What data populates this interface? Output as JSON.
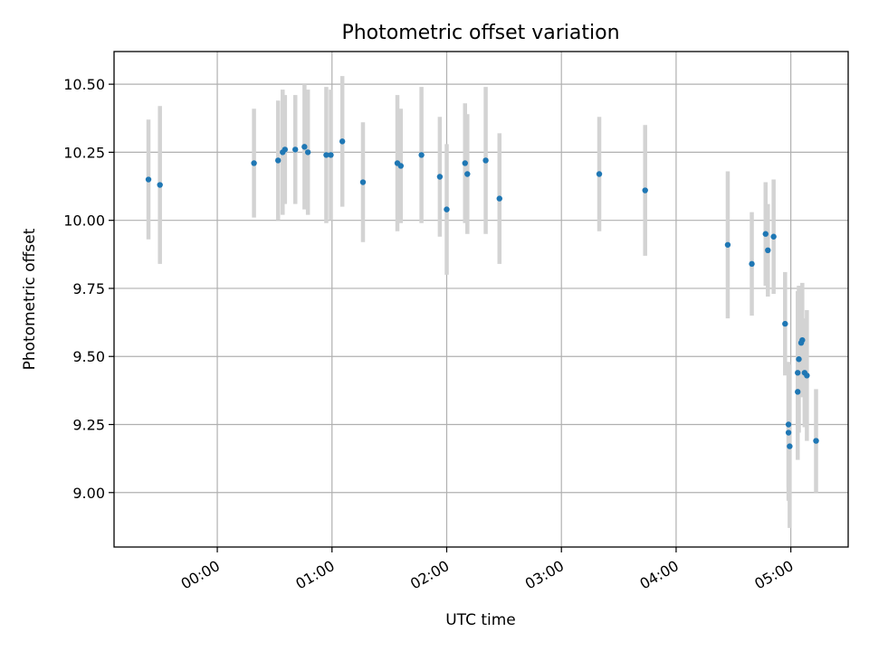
{
  "chart_data": {
    "type": "scatter",
    "title": "Photometric offset variation",
    "xlabel": "UTC time",
    "ylabel": "Photometric offset",
    "x_unit": "UTC time (hours, decimal)",
    "xlim": [
      -0.9,
      5.5
    ],
    "ylim": [
      8.8,
      10.62
    ],
    "x_ticks": [
      {
        "value": 0,
        "label": "00:00"
      },
      {
        "value": 1,
        "label": "01:00"
      },
      {
        "value": 2,
        "label": "02:00"
      },
      {
        "value": 3,
        "label": "03:00"
      },
      {
        "value": 4,
        "label": "04:00"
      },
      {
        "value": 5,
        "label": "05:00"
      }
    ],
    "y_ticks": [
      {
        "value": 9.0,
        "label": "9.00"
      },
      {
        "value": 9.25,
        "label": "9.25"
      },
      {
        "value": 9.5,
        "label": "9.50"
      },
      {
        "value": 9.75,
        "label": "9.75"
      },
      {
        "value": 10.0,
        "label": "10.00"
      },
      {
        "value": 10.25,
        "label": "10.25"
      },
      {
        "value": 10.5,
        "label": "10.50"
      }
    ],
    "grid": true,
    "colors": {
      "points": "#1f77b4",
      "errorbars": "#d3d3d3",
      "grid": "#b0b0b0"
    },
    "points": [
      {
        "x": -0.6,
        "y": 10.15,
        "err": 0.22
      },
      {
        "x": -0.5,
        "y": 10.13,
        "err": 0.29
      },
      {
        "x": 0.32,
        "y": 10.21,
        "err": 0.2
      },
      {
        "x": 0.53,
        "y": 10.22,
        "err": 0.22
      },
      {
        "x": 0.57,
        "y": 10.25,
        "err": 0.23
      },
      {
        "x": 0.59,
        "y": 10.26,
        "err": 0.2
      },
      {
        "x": 0.68,
        "y": 10.26,
        "err": 0.2
      },
      {
        "x": 0.76,
        "y": 10.27,
        "err": 0.23
      },
      {
        "x": 0.79,
        "y": 10.25,
        "err": 0.23
      },
      {
        "x": 0.95,
        "y": 10.24,
        "err": 0.25
      },
      {
        "x": 0.99,
        "y": 10.24,
        "err": 0.24
      },
      {
        "x": 1.09,
        "y": 10.29,
        "err": 0.24
      },
      {
        "x": 1.27,
        "y": 10.14,
        "err": 0.22
      },
      {
        "x": 1.57,
        "y": 10.21,
        "err": 0.25
      },
      {
        "x": 1.6,
        "y": 10.2,
        "err": 0.21
      },
      {
        "x": 1.78,
        "y": 10.24,
        "err": 0.25
      },
      {
        "x": 1.94,
        "y": 10.16,
        "err": 0.22
      },
      {
        "x": 2.0,
        "y": 10.04,
        "err": 0.24
      },
      {
        "x": 2.16,
        "y": 10.21,
        "err": 0.22
      },
      {
        "x": 2.18,
        "y": 10.17,
        "err": 0.22
      },
      {
        "x": 2.34,
        "y": 10.22,
        "err": 0.27
      },
      {
        "x": 2.46,
        "y": 10.08,
        "err": 0.24
      },
      {
        "x": 3.33,
        "y": 10.17,
        "err": 0.21
      },
      {
        "x": 3.73,
        "y": 10.11,
        "err": 0.24
      },
      {
        "x": 4.45,
        "y": 9.91,
        "err": 0.27
      },
      {
        "x": 4.66,
        "y": 9.84,
        "err": 0.19
      },
      {
        "x": 4.78,
        "y": 9.95,
        "err": 0.19
      },
      {
        "x": 4.8,
        "y": 9.89,
        "err": 0.17
      },
      {
        "x": 4.85,
        "y": 9.94,
        "err": 0.21
      },
      {
        "x": 4.95,
        "y": 9.62,
        "err": 0.19
      },
      {
        "x": 4.98,
        "y": 9.25,
        "err": 0.23
      },
      {
        "x": 4.98,
        "y": 9.22,
        "err": 0.25
      },
      {
        "x": 4.99,
        "y": 9.17,
        "err": 0.3
      },
      {
        "x": 5.06,
        "y": 9.44,
        "err": 0.3
      },
      {
        "x": 5.06,
        "y": 9.37,
        "err": 0.25
      },
      {
        "x": 5.07,
        "y": 9.49,
        "err": 0.27
      },
      {
        "x": 5.09,
        "y": 9.55,
        "err": 0.19
      },
      {
        "x": 5.1,
        "y": 9.56,
        "err": 0.21
      },
      {
        "x": 5.12,
        "y": 9.44,
        "err": 0.2
      },
      {
        "x": 5.14,
        "y": 9.43,
        "err": 0.24
      },
      {
        "x": 5.22,
        "y": 9.19,
        "err": 0.19
      }
    ]
  }
}
